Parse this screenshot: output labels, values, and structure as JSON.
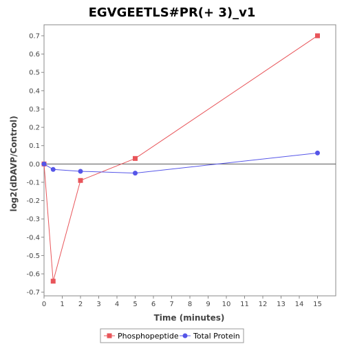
{
  "chart_data": {
    "type": "line",
    "title": "EGVGEETLS#PR(+ 3)_v1",
    "xlabel": "Time (minutes)",
    "ylabel": "log2(dDAVP/Control)",
    "xlim": [
      0,
      16
    ],
    "ylim": [
      -0.72,
      0.76
    ],
    "x_ticks": [
      0,
      1,
      2,
      3,
      4,
      5,
      6,
      7,
      8,
      9,
      10,
      11,
      12,
      13,
      14,
      15
    ],
    "y_ticks": [
      -0.7,
      -0.6,
      -0.5,
      -0.4,
      -0.3,
      -0.2,
      -0.1,
      0.0,
      0.1,
      0.2,
      0.3,
      0.4,
      0.5,
      0.6,
      0.7
    ],
    "x_tick_labels": [
      "0",
      "1",
      "2",
      "3",
      "4",
      "5",
      "6",
      "7",
      "8",
      "9",
      "10",
      "11",
      "12",
      "13",
      "14",
      "15"
    ],
    "y_tick_labels": [
      "-0.7",
      "-0.6",
      "-0.5",
      "-0.4",
      "-0.3",
      "-0.2",
      "-0.1",
      "0.0",
      "0.1",
      "0.2",
      "0.3",
      "0.4",
      "0.5",
      "0.6",
      "0.7"
    ],
    "grid": false,
    "zero_line": true,
    "legend_position": "bottom-center",
    "series": [
      {
        "name": "Phosphopeptide",
        "color": "#e8555a",
        "marker": "square",
        "x": [
          0,
          0.5,
          2,
          5,
          15
        ],
        "y": [
          0.0,
          -0.64,
          -0.09,
          0.03,
          0.7
        ]
      },
      {
        "name": "Total Protein",
        "color": "#5555e8",
        "marker": "circle",
        "x": [
          0,
          0.5,
          2,
          5,
          15
        ],
        "y": [
          0.0,
          -0.03,
          -0.04,
          -0.05,
          0.06
        ]
      }
    ]
  }
}
